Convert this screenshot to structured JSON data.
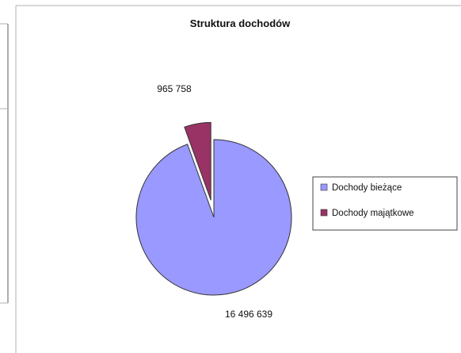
{
  "chart_data": {
    "type": "pie",
    "title": "Struktura dochodów",
    "categories": [
      "Dochody bieżące",
      "Dochody majątkowe"
    ],
    "values": [
      16496639,
      965758
    ],
    "value_labels": [
      "16 496 639",
      "965 758"
    ],
    "exploded": [
      false,
      true
    ],
    "colors": [
      "#9999ff",
      "#993366"
    ],
    "legend_position": "right"
  }
}
